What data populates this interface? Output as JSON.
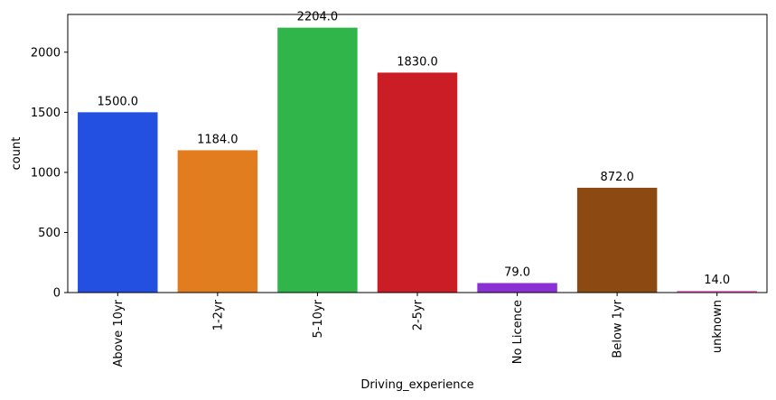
{
  "chart_data": {
    "type": "bar",
    "categories": [
      "Above 10yr",
      "1-2yr",
      "5-10yr",
      "2-5yr",
      "No Licence",
      "Below 1yr",
      "unknown"
    ],
    "values": [
      1500.0,
      1184.0,
      2204.0,
      1830.0,
      79.0,
      872.0,
      14.0
    ],
    "value_labels": [
      "1500.0",
      "1184.0",
      "2204.0",
      "1830.0",
      "79.0",
      "872.0",
      "14.0"
    ],
    "colors": [
      "#2350e1",
      "#e17c1f",
      "#2fb54a",
      "#cb1d26",
      "#8b31d4",
      "#8c4a12",
      "#e86ac6"
    ],
    "xlabel": "Driving_experience",
    "ylabel": "count",
    "ylim": [
      0,
      2314
    ],
    "yticks": [
      0,
      500,
      1000,
      1500,
      2000
    ],
    "grid": false,
    "legend": "none"
  }
}
